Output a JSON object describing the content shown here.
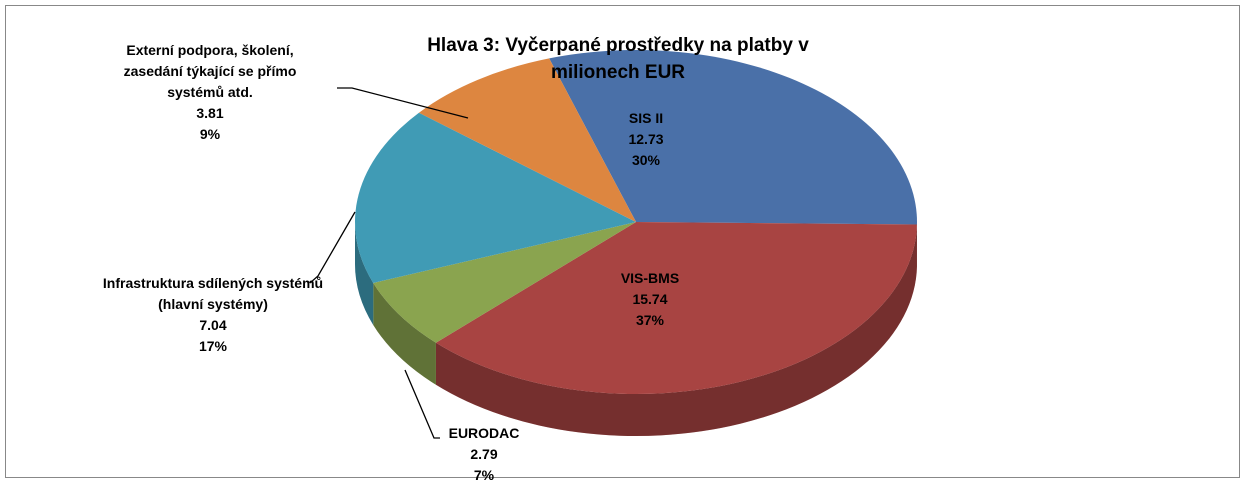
{
  "chart_data": {
    "type": "pie3d",
    "title": "Hlava 3: Vyčerpané prostředky na platby v milionech EUR",
    "categories": [
      "SIS II",
      "VIS-BMS",
      "EURODAC",
      "Infrastruktura sdílených systémů (hlavní systémy)",
      "Externí podpora, školení, zasedání týkající se přímo systémů atd."
    ],
    "values": [
      12.73,
      15.74,
      2.79,
      7.04,
      3.81
    ],
    "percent_labels": [
      "30%",
      "37%",
      "7%",
      "17%",
      "9%"
    ],
    "colors": [
      "#4a70a8",
      "#a84442",
      "#8aa44f",
      "#409bb5",
      "#dd8640"
    ]
  }
}
